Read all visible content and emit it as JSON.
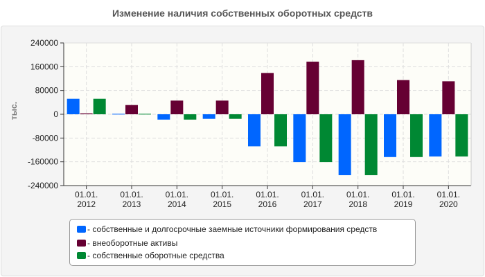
{
  "chart_data": {
    "type": "bar",
    "title": "Изменение наличия собственных оборотных средств",
    "ylabel": "тыс.",
    "xlabel": "",
    "ylim": [
      -240000,
      240000
    ],
    "yticks": [
      "240000",
      "160000",
      "80000",
      "0",
      "-80000",
      "-160000",
      "-240000"
    ],
    "grid": true,
    "legend_position": "bottom",
    "categories": [
      [
        "01.01.",
        "2012"
      ],
      [
        "01.01.",
        "2013"
      ],
      [
        "01.01.",
        "2014"
      ],
      [
        "01.01.",
        "2015"
      ],
      [
        "01.01.",
        "2016"
      ],
      [
        "01.01.",
        "2017"
      ],
      [
        "01.01.",
        "2018"
      ],
      [
        "01.01.",
        "2019"
      ],
      [
        "01.01.",
        "2020"
      ]
    ],
    "series": [
      {
        "name": "- собственные и долгосрочные заемные источники формирования средств",
        "color": "#0066ff",
        "values": [
          52000,
          1500,
          -18000,
          -15500,
          -108000,
          -161000,
          -205000,
          -144000,
          -142000
        ]
      },
      {
        "name": "- внеоборотные активы",
        "color": "#660033",
        "values": [
          3000,
          31000,
          46000,
          46000,
          139000,
          177000,
          182000,
          115000,
          111000
        ]
      },
      {
        "name": "- собственные оборотные средства",
        "color": "#008833",
        "values": [
          52000,
          1500,
          -18000,
          -15500,
          -108000,
          -161000,
          -205000,
          -144000,
          -142000
        ]
      }
    ]
  }
}
